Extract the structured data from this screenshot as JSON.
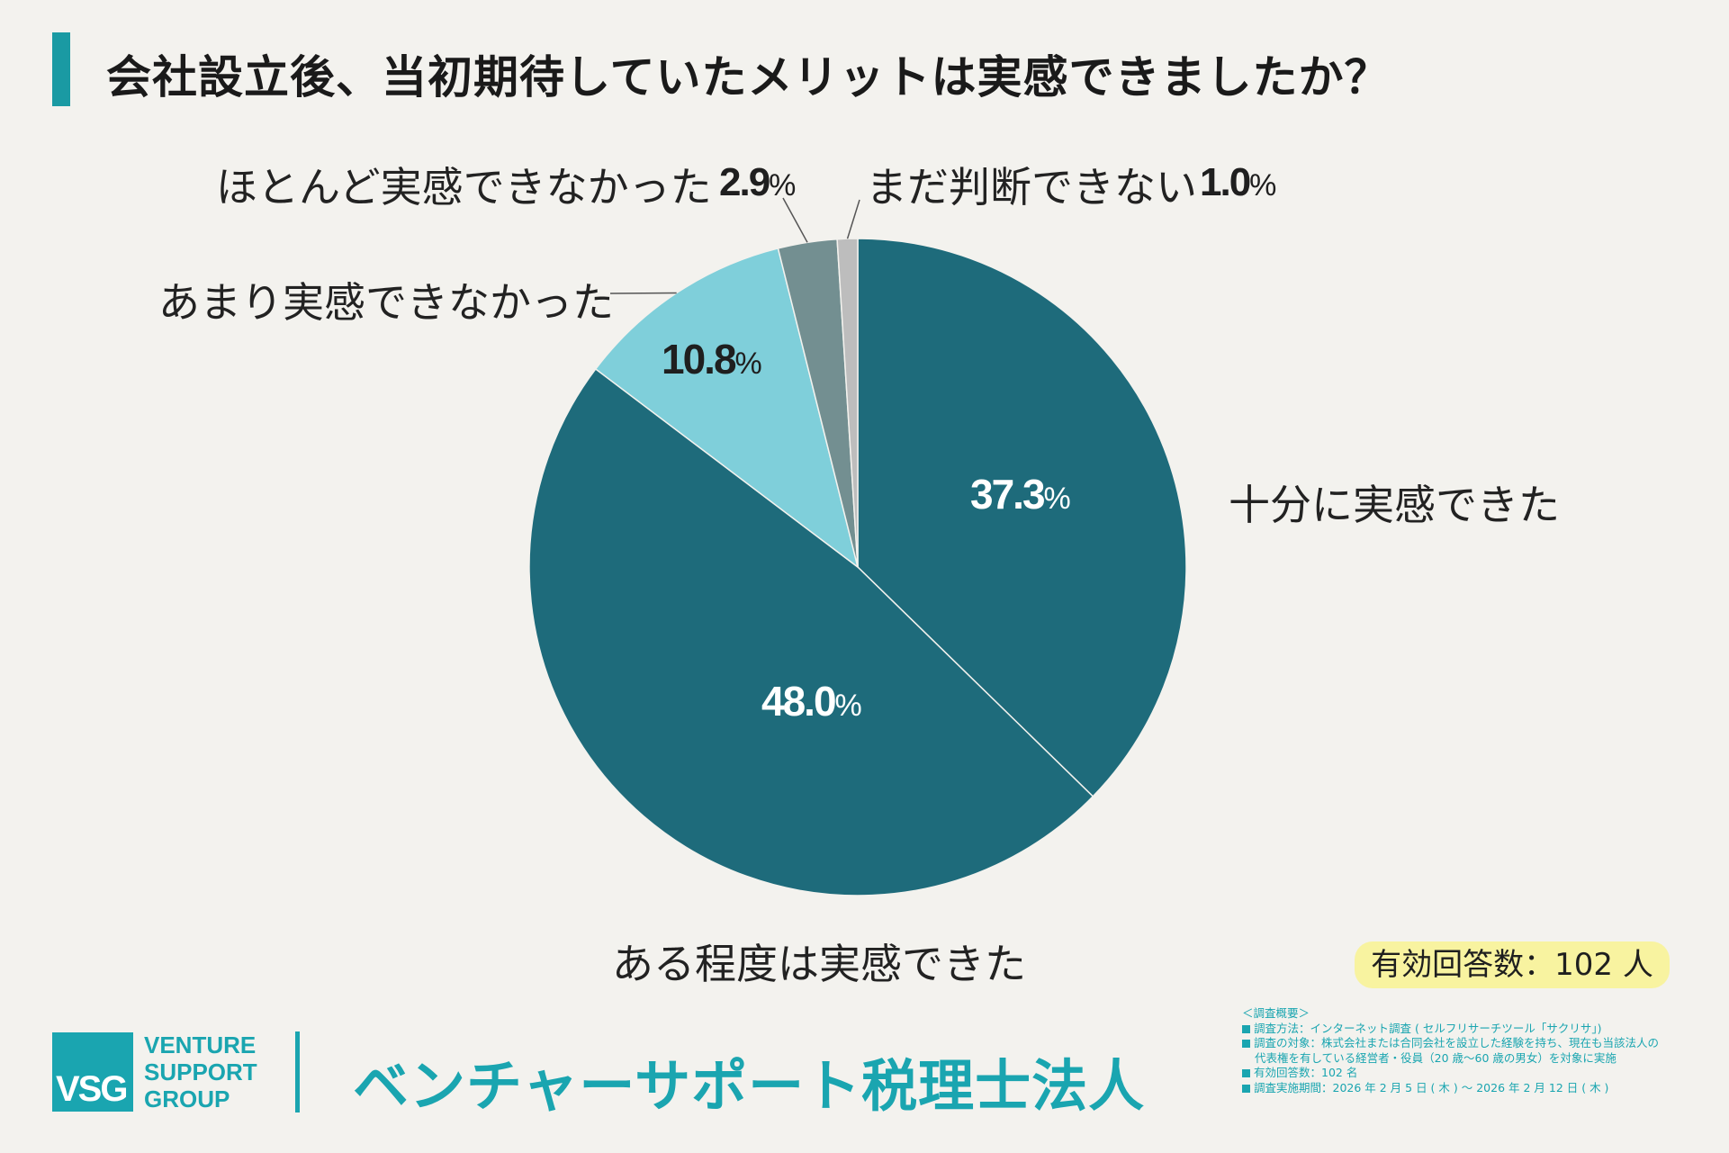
{
  "title": "会社設立後、当初期待していたメリットは実感できましたか？",
  "chart_data": {
    "type": "pie",
    "title": "会社設立後、当初期待していたメリットは実感できましたか？",
    "unit": "%",
    "slices": [
      {
        "label": "十分に実感できた",
        "value": 37.3,
        "value_text": "37.3",
        "color": "#1e6b7b",
        "text_color": "#ffffff"
      },
      {
        "label": "ある程度は実感できた",
        "value": 48.0,
        "value_text": "48.0",
        "color": "#1e6b7b",
        "text_color": "#ffffff"
      },
      {
        "label": "あまり実感できなかった",
        "value": 10.8,
        "value_text": "10.8",
        "color": "#7fcfda",
        "text_color": "#1f1f1f"
      },
      {
        "label": "ほとんど実感できなかった",
        "value": 2.9,
        "value_text": "2.9",
        "color": "#738f91",
        "text_color": "#1f1f1f"
      },
      {
        "label": "まだ判断できない",
        "value": 1.0,
        "value_text": "1.0",
        "color": "#bdbdbd",
        "text_color": "#1f1f1f"
      }
    ]
  },
  "respondents": "有効回答数：102 人",
  "overview": {
    "heading": "＜調査概要＞",
    "method": "調査方法：インターネット調査 ( セルフリサーチツール「サクリサ」)",
    "target_line1": "調査の対象：株式会社または合同会社を設立した経験を持ち、現在も当該法人の",
    "target_line2": "代表権を有している経営者・役員（20 歳〜60 歳の男女）を対象に実施",
    "count": "有効回答数：102 名",
    "period": "調査実施期間：2026 年 2 月 5 日 ( 木 ) 〜 2026 年 2 月 12 日 ( 木 )"
  },
  "logo": {
    "mark": "VSG",
    "line1": "VENTURE",
    "line2": "SUPPORT",
    "line3": "GROUP"
  },
  "company_name": "ベンチャーサポート税理士法人",
  "colors": {
    "accent": "#1aa5b0",
    "background": "#f3f2ee"
  }
}
